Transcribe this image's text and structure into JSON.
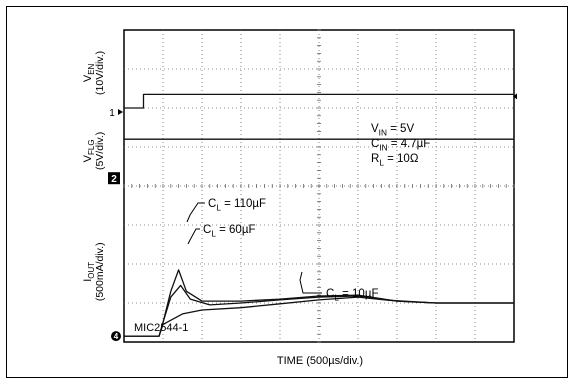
{
  "chart_data": {
    "type": "line",
    "title": "",
    "xlabel": "TIME (500µs/div.)",
    "x_divisions": 10,
    "y_divisions": 8,
    "grid": true,
    "channels": [
      {
        "marker": "1",
        "label_main": "V",
        "label_sub": "EN",
        "label_scale": "(10V/div.)"
      },
      {
        "marker": "2",
        "label_main": "V",
        "label_sub": "FLG",
        "label_scale": "(5V/div.)"
      },
      {
        "marker": "4",
        "label_main": "I",
        "label_sub": "OUT",
        "label_scale": "(500mA/div.)"
      }
    ],
    "conditions": [
      {
        "main": "V",
        "sub": "IN",
        "rest": " = 5V"
      },
      {
        "main": "C",
        "sub": "IN",
        "rest": " = 4.7µF"
      },
      {
        "main": "R",
        "sub": "L",
        "rest": " = 10Ω"
      }
    ],
    "annotations": [
      {
        "main": "C",
        "sub": "L",
        "rest": " = 110µF"
      },
      {
        "main": "C",
        "sub": "L",
        "rest": " = 60µF"
      },
      {
        "main": "C",
        "sub": "L",
        "rest": " = 10µF"
      }
    ],
    "part_label": "MIC2544-1",
    "series": [
      {
        "label": "V_EN",
        "x": [
          0,
          0.5,
          0.5,
          10
        ],
        "y": [
          6.0,
          6.0,
          6.35,
          6.35
        ]
      },
      {
        "label": "V_FLG",
        "x": [
          0,
          10
        ],
        "y": [
          5.2,
          5.2
        ]
      },
      {
        "label": "C_L = 110µF",
        "x": [
          0,
          0.9,
          1.0,
          1.2,
          1.4,
          1.6,
          2.0,
          3.0,
          4.0,
          5.0,
          6.0,
          7.0,
          8.0,
          10.0
        ],
        "y": [
          0.15,
          0.15,
          0.5,
          1.3,
          1.85,
          1.3,
          1.05,
          1.05,
          1.1,
          1.18,
          1.2,
          1.05,
          1.0,
          1.0
        ]
      },
      {
        "label": "C_L = 60µF",
        "x": [
          0,
          0.9,
          1.0,
          1.2,
          1.45,
          1.7,
          2.2,
          3.0,
          4.0,
          5.0,
          6.0,
          7.0,
          8.0,
          10.0
        ],
        "y": [
          0.15,
          0.15,
          0.5,
          1.15,
          1.45,
          1.1,
          0.95,
          1.0,
          1.08,
          1.15,
          1.18,
          1.05,
          1.0,
          1.0
        ]
      },
      {
        "label": "C_L = 10µF",
        "x": [
          0,
          0.9,
          1.0,
          1.5,
          2.0,
          3.0,
          4.0,
          5.0,
          6.0,
          6.8,
          8.0,
          10.0
        ],
        "y": [
          0.15,
          0.15,
          0.45,
          0.72,
          0.82,
          0.88,
          0.98,
          1.08,
          1.15,
          1.07,
          1.0,
          1.0
        ]
      }
    ]
  }
}
